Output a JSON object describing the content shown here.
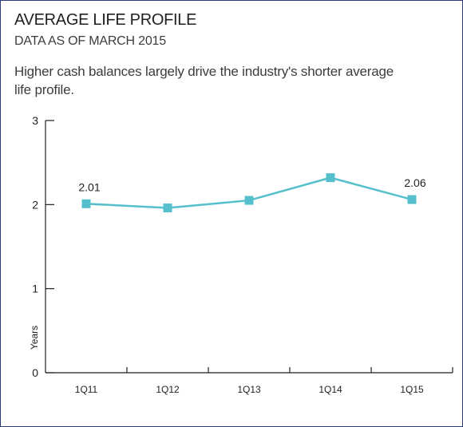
{
  "header": {
    "title": "AVERAGE LIFE PROFILE",
    "subtitle": "DATA AS OF MARCH 2015",
    "caption": "Higher cash balances largely drive the industry's shorter average life profile."
  },
  "chart_data": {
    "type": "line",
    "categories": [
      "1Q11",
      "1Q12",
      "1Q13",
      "1Q14",
      "1Q15"
    ],
    "series": [
      {
        "values": [
          2.01,
          1.96,
          2.05,
          2.32,
          2.06
        ],
        "color": "#55c0cc"
      }
    ],
    "data_labels": [
      {
        "index": 0,
        "text": "2.01"
      },
      {
        "index": 4,
        "text": "2.06"
      }
    ],
    "ylabel": "Years",
    "xlabel": "",
    "ylim": [
      0,
      3
    ],
    "yticks": [
      0,
      1,
      2,
      3
    ],
    "ytick_labels": [
      "0",
      "1",
      "2",
      "3"
    ],
    "grid": false,
    "marker": "square"
  }
}
